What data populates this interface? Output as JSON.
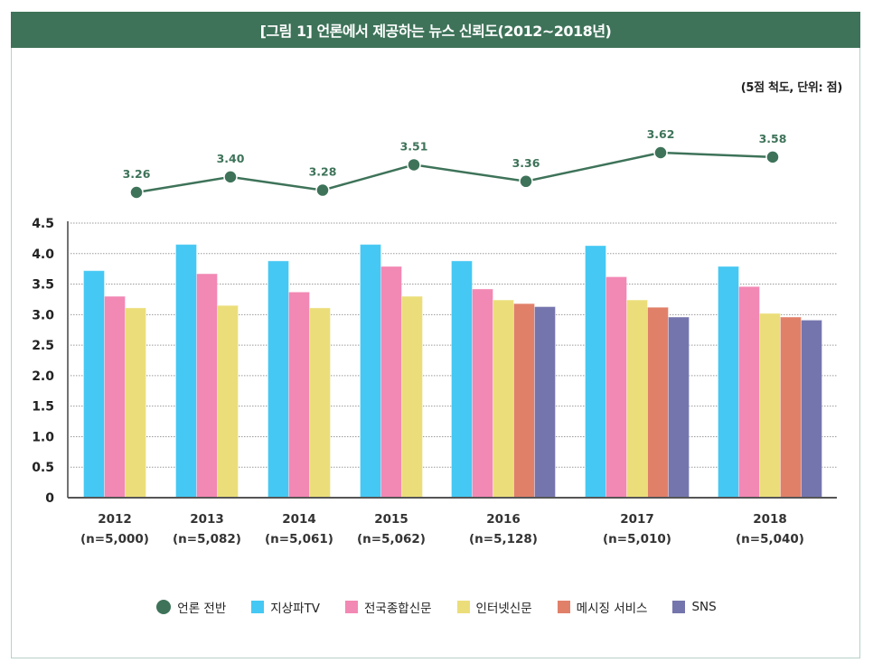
{
  "title": "[그림 1] 언론에서 제공하는 뉴스 신뢰도(2012~2018년)",
  "unit_note": "(5점 척도, 단위: 점)",
  "colors": {
    "title_bg": "#3e7359",
    "overall": "#3e7359",
    "tv": "#45c8f3",
    "newspaper": "#f288b4",
    "internet": "#ebde7a",
    "messaging": "#e18069",
    "sns": "#7575ae"
  },
  "chart_data": [
    {
      "type": "line",
      "name": "언론 전반",
      "categories": [
        "2012",
        "2013",
        "2014",
        "2015",
        "2016",
        "2017",
        "2018"
      ],
      "values": [
        3.26,
        3.4,
        3.28,
        3.51,
        3.36,
        3.62,
        3.58
      ],
      "labels": [
        "3.26",
        "3.40",
        "3.28",
        "3.51",
        "3.36",
        "3.62",
        "3.58"
      ],
      "marker": "circle"
    },
    {
      "type": "bar",
      "title": "[그림 1] 언론에서 제공하는 뉴스 신뢰도(2012~2018년)",
      "subtitle": "(5점 척도, 단위: 점)",
      "categories": [
        "2012",
        "2013",
        "2014",
        "2015",
        "2016",
        "2017",
        "2018"
      ],
      "category_sublabels": [
        "(n=5,000)",
        "(n=5,082)",
        "(n=5,061)",
        "(n=5,062)",
        "(n=5,128)",
        "(n=5,010)",
        "(n=5,040)"
      ],
      "series": [
        {
          "name": "지상파TV",
          "color_key": "tv",
          "values": [
            3.72,
            4.15,
            3.88,
            4.15,
            3.88,
            4.13,
            3.79
          ]
        },
        {
          "name": "전국종합신문",
          "color_key": "newspaper",
          "values": [
            3.3,
            3.67,
            3.37,
            3.79,
            3.42,
            3.62,
            3.46
          ]
        },
        {
          "name": "인터넷신문",
          "color_key": "internet",
          "values": [
            3.11,
            3.15,
            3.11,
            3.3,
            3.24,
            3.24,
            3.02
          ]
        },
        {
          "name": "메시징 서비스",
          "color_key": "messaging",
          "values": [
            null,
            null,
            null,
            null,
            3.18,
            3.12,
            2.96
          ]
        },
        {
          "name": "SNS",
          "color_key": "sns",
          "values": [
            null,
            null,
            null,
            null,
            3.13,
            2.96,
            2.91
          ]
        }
      ],
      "ylim": [
        0,
        4.5
      ],
      "yticks": [
        0,
        0.5,
        1.0,
        1.5,
        2.0,
        2.5,
        3.0,
        3.5,
        4.0,
        4.5
      ],
      "ytick_labels": [
        "0",
        "0.5",
        "1.0",
        "1.5",
        "2.0",
        "2.5",
        "3.0",
        "3.5",
        "4.0",
        "4.5"
      ],
      "grid": true,
      "xlabel": "",
      "ylabel": ""
    }
  ],
  "legend": {
    "placement": "bottom",
    "items": [
      {
        "label": "언론 전반",
        "shape": "circle",
        "color_key": "overall"
      },
      {
        "label": "지상파TV",
        "shape": "square",
        "color_key": "tv"
      },
      {
        "label": "전국종합신문",
        "shape": "square",
        "color_key": "newspaper"
      },
      {
        "label": "인터넷신문",
        "shape": "square",
        "color_key": "internet"
      },
      {
        "label": "메시징 서비스",
        "shape": "square",
        "color_key": "messaging"
      },
      {
        "label": "SNS",
        "shape": "square",
        "color_key": "sns"
      }
    ]
  }
}
